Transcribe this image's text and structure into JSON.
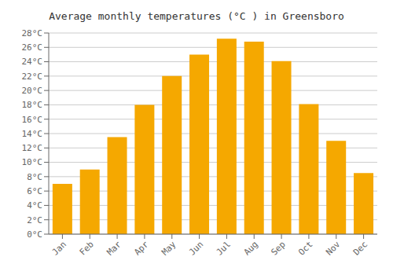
{
  "chart_data": {
    "type": "bar",
    "title": "Average monthly temperatures (°C ) in Greensboro",
    "categories": [
      "Jan",
      "Feb",
      "Mar",
      "Apr",
      "May",
      "Jun",
      "Jul",
      "Aug",
      "Sep",
      "Oct",
      "Nov",
      "Dec"
    ],
    "values": [
      7.0,
      9.0,
      13.5,
      18.0,
      22.0,
      25.0,
      27.2,
      26.8,
      24.1,
      18.1,
      13.0,
      8.5
    ],
    "color": "#F5A800",
    "ylim": [
      0,
      28
    ],
    "yticks": [
      {
        "value": 0,
        "label": "0°C"
      },
      {
        "value": 2,
        "label": "2°C"
      },
      {
        "value": 4,
        "label": "4°C"
      },
      {
        "value": 6,
        "label": "6°C"
      },
      {
        "value": 8,
        "label": "8°C"
      },
      {
        "value": 10,
        "label": "10°C"
      },
      {
        "value": 12,
        "label": "12°C"
      },
      {
        "value": 14,
        "label": "14°C"
      },
      {
        "value": 16,
        "label": "16°C"
      },
      {
        "value": 18,
        "label": "18°C"
      },
      {
        "value": 20,
        "label": "20°C"
      },
      {
        "value": 22,
        "label": "22°C"
      },
      {
        "value": 24,
        "label": "24°C"
      },
      {
        "value": 26,
        "label": "26°C"
      },
      {
        "value": 28,
        "label": "28°C"
      }
    ],
    "grid": true
  }
}
